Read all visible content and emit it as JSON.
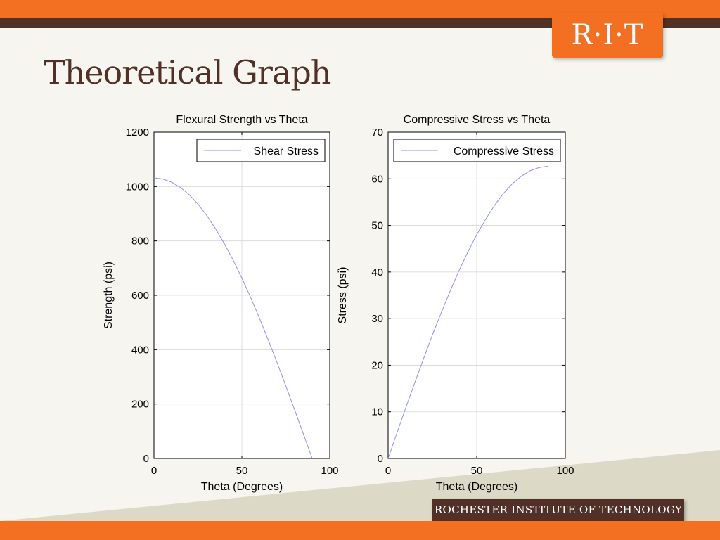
{
  "slide": {
    "title": "Theoretical Graph",
    "logo_text": "R·I·T",
    "footer_text": "ROCHESTER INSTITUTE OF TECHNOLOGY"
  },
  "colors": {
    "orange": "#f36f21",
    "brown": "#513127",
    "background": "#f6f5ef",
    "line": "#8f8ff5"
  },
  "chart_data": [
    {
      "type": "line",
      "title": "Flexural Strength vs Theta",
      "xlabel": "Theta (Degrees)",
      "ylabel": "Strength (psi)",
      "xlim": [
        0,
        100
      ],
      "ylim": [
        0,
        1200
      ],
      "xticks": [
        0,
        50,
        100
      ],
      "yticks": [
        0,
        200,
        400,
        600,
        800,
        1000,
        1200
      ],
      "grid": true,
      "legend": "top-right",
      "series": [
        {
          "name": "Shear Stress",
          "x": [
            0,
            5,
            10,
            15,
            20,
            25,
            30,
            35,
            40,
            45,
            50,
            55,
            60,
            65,
            70,
            75,
            80,
            85,
            90
          ],
          "y": [
            1032,
            1028,
            1016,
            997,
            970,
            936,
            894,
            845,
            790,
            730,
            663,
            592,
            516,
            436,
            353,
            267,
            179,
            90,
            0
          ]
        }
      ]
    },
    {
      "type": "line",
      "title": "Compressive Stress vs Theta",
      "xlabel": "Theta (Degrees)",
      "ylabel": "Stress (psi)",
      "xlim": [
        0,
        100
      ],
      "ylim": [
        0,
        70
      ],
      "xticks": [
        0,
        50,
        100
      ],
      "yticks": [
        0,
        10,
        20,
        30,
        40,
        50,
        60,
        70
      ],
      "grid": true,
      "legend": "top-right",
      "series": [
        {
          "name": "Compressive Stress",
          "x": [
            0,
            5,
            10,
            15,
            20,
            25,
            30,
            35,
            40,
            45,
            50,
            55,
            60,
            65,
            70,
            75,
            80,
            85,
            90
          ],
          "y": [
            0,
            5.5,
            10.9,
            16.2,
            21.4,
            26.5,
            31.3,
            35.9,
            40.3,
            44.3,
            48.0,
            51.3,
            54.3,
            56.8,
            58.9,
            60.5,
            61.7,
            62.4,
            62.7
          ]
        }
      ]
    }
  ]
}
